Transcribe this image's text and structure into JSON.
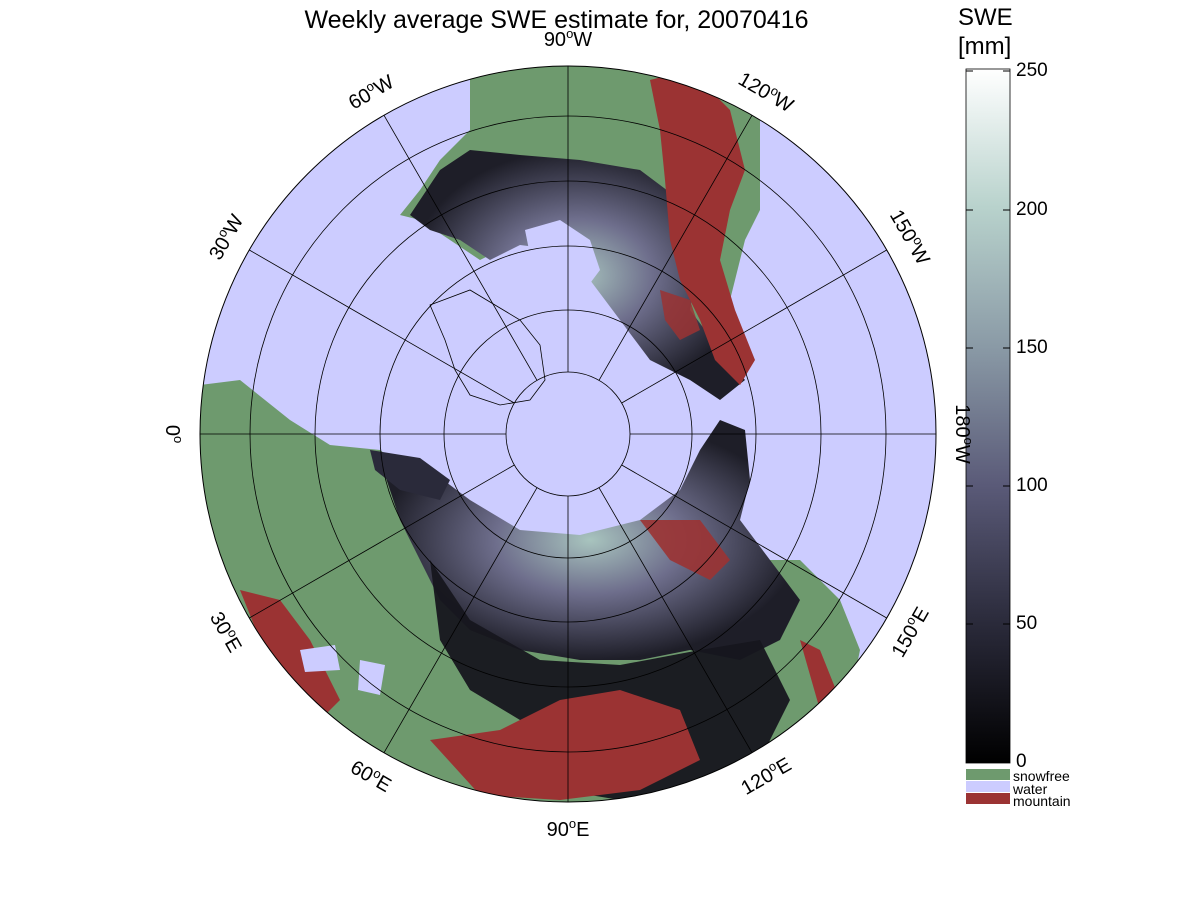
{
  "title": "Weekly average SWE estimate for, 20070416",
  "colorbar": {
    "title_line1": "SWE",
    "title_line2": "[mm]",
    "ticks": [
      "250",
      "200",
      "150",
      "100",
      "50",
      "0"
    ],
    "categories": [
      {
        "label": "snowfree",
        "color": "#6e9a6e"
      },
      {
        "label": "water",
        "color": "#ccccff"
      },
      {
        "label": "mountain",
        "color": "#9b3333"
      }
    ],
    "gradient_colors": [
      "#000000",
      "#2a2a3a",
      "#5a5a78",
      "#8a9aa6",
      "#b8d2cc",
      "#ffffff"
    ]
  },
  "longitude_labels": [
    {
      "deg": "90",
      "dir": "W"
    },
    {
      "deg": "120",
      "dir": "W"
    },
    {
      "deg": "150",
      "dir": "W"
    },
    {
      "deg": "180",
      "dir": "W"
    },
    {
      "deg": "150",
      "dir": "E"
    },
    {
      "deg": "120",
      "dir": "E"
    },
    {
      "deg": "90",
      "dir": "E"
    },
    {
      "deg": "60",
      "dir": "E"
    },
    {
      "deg": "30",
      "dir": "E"
    },
    {
      "deg": "0",
      "dir": ""
    },
    {
      "deg": "30",
      "dir": "W"
    },
    {
      "deg": "60",
      "dir": "W"
    }
  ],
  "chart_data": {
    "type": "heatmap",
    "title": "Weekly average SWE estimate for, 20070416",
    "projection": "north polar stereographic",
    "colorbar_range": [
      0,
      250
    ],
    "colorbar_units": "[mm]",
    "colorbar_ticks": [
      0,
      50,
      100,
      150,
      200,
      250
    ],
    "categories": [
      "snowfree",
      "water",
      "mountain"
    ]
  }
}
